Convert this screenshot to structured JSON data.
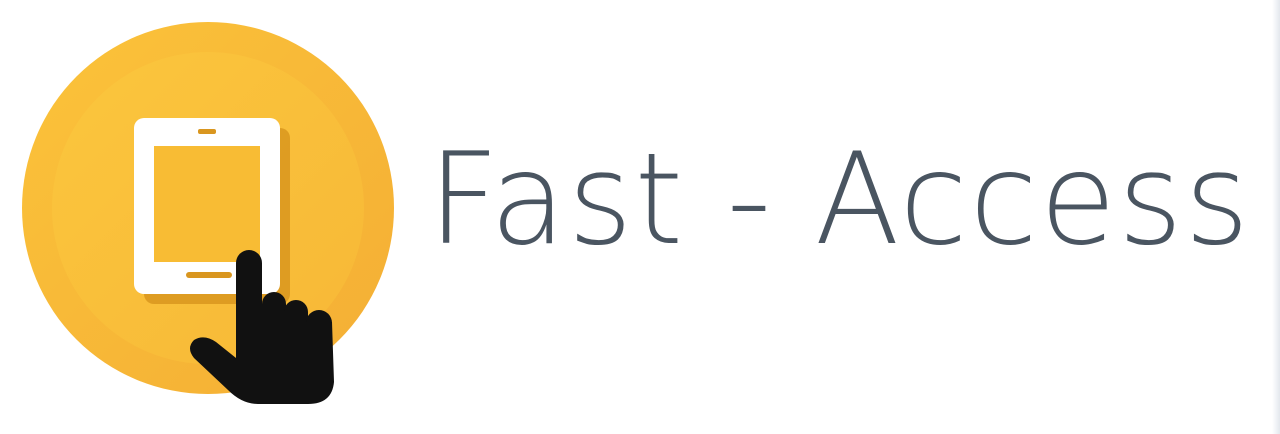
{
  "brand": {
    "name": "Fast - Access",
    "icon": "tablet-tap-icon"
  },
  "colors": {
    "circle_outer": "#F6B63A",
    "circle_inner": "#F9C23C",
    "tablet_body": "#FFFFFF",
    "tablet_screen": "#F8BC34",
    "hand": "#111111",
    "text": "#4A5561"
  }
}
